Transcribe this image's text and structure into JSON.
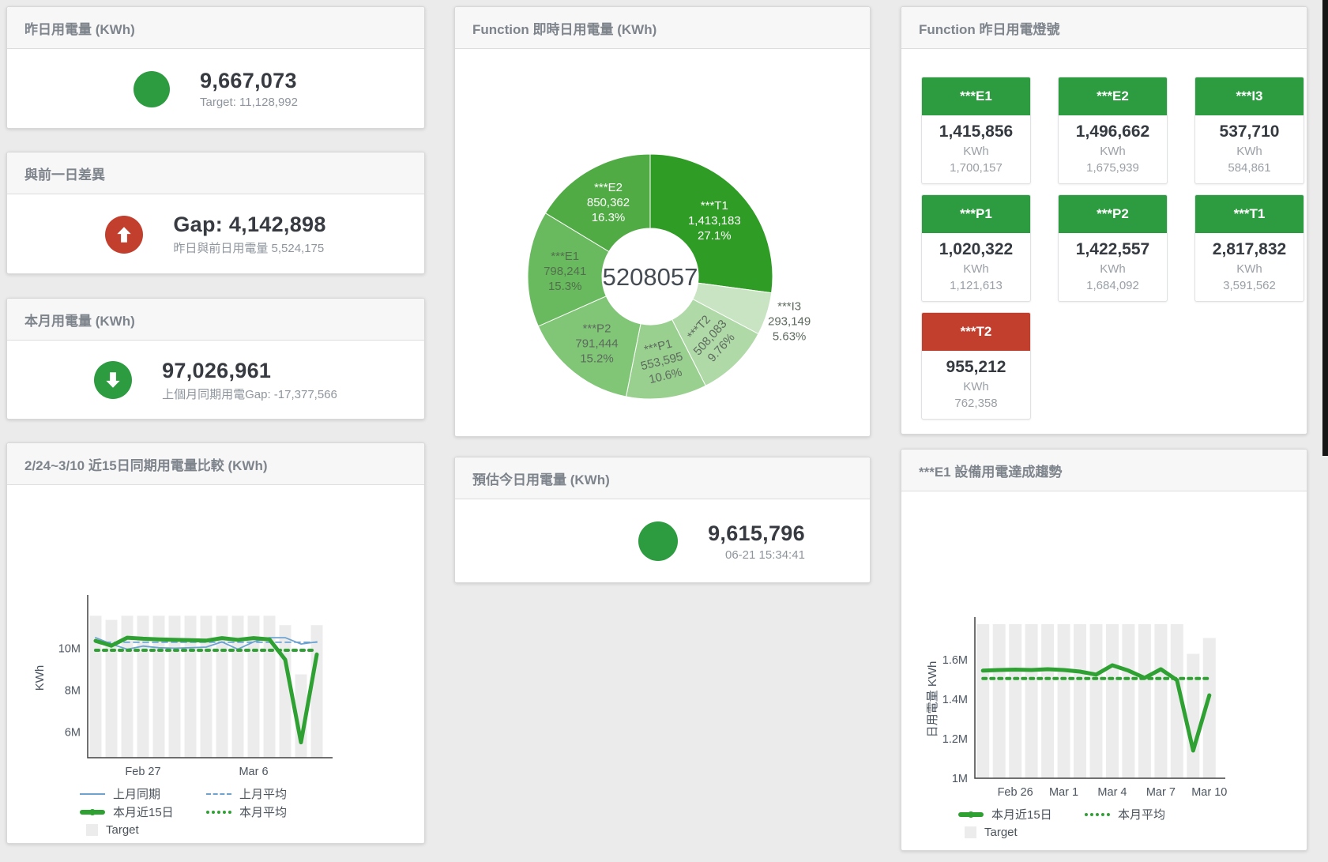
{
  "colors": {
    "green": "#2d9b40",
    "red": "#c23f2e",
    "blue": "#6ea3cf",
    "chart_green": "#2fa133",
    "bar_gray": "#ececec",
    "axis": "#424242",
    "tick_text": "#4b5560"
  },
  "cards": {
    "yesterday": {
      "title": "昨日用電量 (KWh)",
      "value": "9,667,073",
      "subtitle": "Target: 11,128,992",
      "status": "green"
    },
    "gap": {
      "title": "與前一日差異",
      "value": "Gap: 4,142,898",
      "subtitle": "昨日與前日用電量 5,524,175",
      "status": "red",
      "arrow": "up"
    },
    "month": {
      "title": "本月用電量 (KWh)",
      "value": "97,026,961",
      "subtitle": "上個月同期用電Gap: -17,377,566",
      "status": "green",
      "arrow": "down"
    },
    "estimate": {
      "title": "預估今日用電量 (KWh)",
      "value": "9,615,796",
      "subtitle": "06-21 15:34:41",
      "status": "green"
    }
  },
  "lights_panel": {
    "title": "Function 昨日用電燈號",
    "unit": "KWh",
    "tiles": [
      {
        "name": "***E1",
        "value": "1,415,856",
        "target": "1,700,157",
        "status": "green"
      },
      {
        "name": "***E2",
        "value": "1,496,662",
        "target": "1,675,939",
        "status": "green"
      },
      {
        "name": "***I3",
        "value": "537,710",
        "target": "584,861",
        "status": "green"
      },
      {
        "name": "***P1",
        "value": "1,020,322",
        "target": "1,121,613",
        "status": "green"
      },
      {
        "name": "***P2",
        "value": "1,422,557",
        "target": "1,684,092",
        "status": "green"
      },
      {
        "name": "***T1",
        "value": "2,817,832",
        "target": "3,591,562",
        "status": "green"
      },
      {
        "name": "***T2",
        "value": "955,212",
        "target": "762,358",
        "status": "red"
      }
    ]
  },
  "chart_data": [
    {
      "type": "pie",
      "title": "Function 即時日用電量 (KWh)",
      "total_label": "5208057",
      "unit": "KWh",
      "legend_position": "none",
      "slices": [
        {
          "name": "***T1",
          "value": 1413183,
          "value_label": "1,413,183",
          "pct": "27.1%",
          "color": "#2f9c25",
          "label_color": "#ffffff",
          "rotation": 0,
          "label_inside": true
        },
        {
          "name": "***I3",
          "value": 293149,
          "value_label": "293,149",
          "pct": "5.63%",
          "color": "#c9e4c2",
          "label_color": "#5d6a5e",
          "rotation": 0,
          "label_inside": false
        },
        {
          "name": "***T2",
          "value": 508083,
          "value_label": "508,083",
          "pct": "9.76%",
          "color": "#b0d9a8",
          "label_color": "#5d6a5e",
          "rotation": -48,
          "label_inside": true
        },
        {
          "name": "***P1",
          "value": 553595,
          "value_label": "553,595",
          "pct": "10.6%",
          "color": "#99d08f",
          "label_color": "#5d6a5e",
          "rotation": -14,
          "label_inside": true
        },
        {
          "name": "***P2",
          "value": 791444,
          "value_label": "791,444",
          "pct": "15.2%",
          "color": "#81c577",
          "label_color": "#5d6a5e",
          "rotation": 0,
          "label_inside": true
        },
        {
          "name": "***E1",
          "value": 798241,
          "value_label": "798,241",
          "pct": "15.3%",
          "color": "#69b95e",
          "label_color": "#52704d",
          "rotation": 0,
          "label_inside": true
        },
        {
          "name": "***E2",
          "value": 850362,
          "value_label": "850,362",
          "pct": "16.3%",
          "color": "#50ab45",
          "label_color": "#ffffff",
          "rotation": 0,
          "label_inside": true
        }
      ]
    },
    {
      "type": "line",
      "title": "2/24~3/10 近15日同期用電量比較 (KWh)",
      "ylabel": "KWh",
      "xlabel": "",
      "grid": false,
      "legend_position": "bottom",
      "categories": [
        "2/24",
        "2/25",
        "2/26",
        "2/27",
        "2/28",
        "3/1",
        "3/2",
        "3/3",
        "3/4",
        "3/5",
        "3/6",
        "3/7",
        "3/8",
        "3/9",
        "3/10"
      ],
      "ylim": [
        4770000,
        12390000
      ],
      "yticks": [
        {
          "v": 6000000,
          "label": "6M"
        },
        {
          "v": 8000000,
          "label": "8M"
        },
        {
          "v": 10000000,
          "label": "10M"
        }
      ],
      "xticks": [
        {
          "i": 3,
          "label": "Feb 27"
        },
        {
          "i": 10,
          "label": "Mar 6"
        }
      ],
      "series": [
        {
          "name": "Target",
          "type": "bar",
          "color_key": "bar_gray",
          "values": [
            11550000,
            11350000,
            11550000,
            11550000,
            11550000,
            11550000,
            11550000,
            11550000,
            11550000,
            11550000,
            11550000,
            11550000,
            11100000,
            8750000,
            11100000
          ]
        },
        {
          "name": "上月同期",
          "type": "line",
          "style": "solid",
          "width": 1.8,
          "color_key": "blue",
          "values": [
            10500000,
            10200000,
            9950000,
            10100000,
            10020000,
            10000000,
            10020000,
            10050000,
            10300000,
            9950000,
            10300000,
            10500000,
            10500000,
            10200000,
            10300000
          ]
        },
        {
          "name": "上月平均",
          "type": "line",
          "style": "dashed",
          "width": 1.8,
          "color_key": "blue",
          "const": 10280000
        },
        {
          "name": "本月近15日",
          "type": "line",
          "style": "solid",
          "width": 5,
          "color_key": "chart_green",
          "values": [
            10350000,
            10120000,
            10500000,
            10450000,
            10420000,
            10400000,
            10380000,
            10360000,
            10480000,
            10400000,
            10480000,
            10420000,
            9450000,
            5500000,
            9700000
          ]
        },
        {
          "name": "本月平均",
          "type": "line",
          "style": "dotted",
          "width": 4,
          "color_key": "chart_green",
          "const": 9900000
        }
      ],
      "legend": [
        {
          "label": "上月同期",
          "marker": "line",
          "color_key": "blue"
        },
        {
          "label": "上月平均",
          "marker": "dash",
          "color_key": "blue"
        },
        {
          "label": "本月近15日",
          "marker": "thick",
          "color_key": "chart_green"
        },
        {
          "label": "本月平均",
          "marker": "dot",
          "color_key": "chart_green"
        },
        {
          "label": "Target",
          "marker": "box",
          "color_key": "bar_gray"
        }
      ]
    },
    {
      "type": "line",
      "title": "***E1 設備用電達成趨勢",
      "ylabel": "日用電量 KWh",
      "xlabel": "",
      "grid": false,
      "legend_position": "bottom",
      "categories": [
        "2/24",
        "2/25",
        "2/26",
        "2/27",
        "2/28",
        "3/1",
        "3/2",
        "3/3",
        "3/4",
        "3/5",
        "3/6",
        "3/7",
        "3/8",
        "3/9",
        "3/10"
      ],
      "ylim": [
        1000000,
        1800000
      ],
      "yticks": [
        {
          "v": 1000000,
          "label": "1M"
        },
        {
          "v": 1200000,
          "label": "1.2M"
        },
        {
          "v": 1400000,
          "label": "1.4M"
        },
        {
          "v": 1600000,
          "label": "1.6M"
        }
      ],
      "xticks": [
        {
          "i": 2,
          "label": "Feb 26"
        },
        {
          "i": 5,
          "label": "Mar 1"
        },
        {
          "i": 8,
          "label": "Mar 4"
        },
        {
          "i": 11,
          "label": "Mar 7"
        },
        {
          "i": 14,
          "label": "Mar 10"
        }
      ],
      "series": [
        {
          "name": "Target",
          "type": "bar",
          "color_key": "bar_gray",
          "values": [
            1780000,
            1780000,
            1780000,
            1780000,
            1780000,
            1780000,
            1780000,
            1780000,
            1780000,
            1780000,
            1780000,
            1780000,
            1780000,
            1630000,
            1710000
          ]
        },
        {
          "name": "本月近15日",
          "type": "line",
          "style": "solid",
          "width": 5,
          "color_key": "chart_green",
          "values": [
            1545000,
            1548000,
            1550000,
            1548000,
            1552000,
            1548000,
            1540000,
            1525000,
            1572000,
            1545000,
            1508000,
            1552000,
            1497000,
            1140000,
            1420000
          ]
        },
        {
          "name": "本月平均",
          "type": "line",
          "style": "dotted",
          "width": 4,
          "color_key": "chart_green",
          "const": 1505000
        }
      ],
      "legend": [
        {
          "label": "本月近15日",
          "marker": "thick",
          "color_key": "chart_green"
        },
        {
          "label": "本月平均",
          "marker": "dot",
          "color_key": "chart_green"
        },
        {
          "label": "Target",
          "marker": "box",
          "color_key": "bar_gray"
        }
      ]
    }
  ]
}
